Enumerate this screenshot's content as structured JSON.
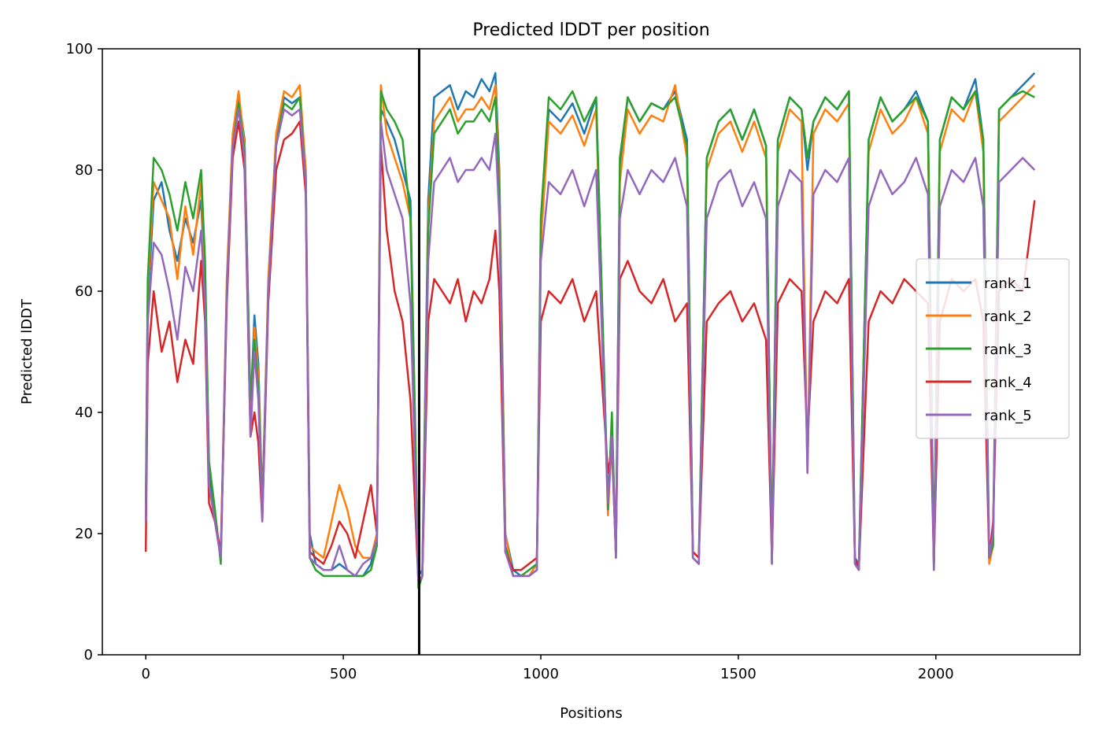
{
  "chart_data": {
    "type": "line",
    "title": "Predicted lDDT per position",
    "xlabel": "Positions",
    "ylabel": "Predicted lDDT",
    "xlim": [
      -110,
      2365
    ],
    "ylim": [
      0,
      100
    ],
    "xticks": [
      0,
      500,
      1000,
      1500,
      2000
    ],
    "yticks": [
      0,
      20,
      40,
      60,
      80,
      100
    ],
    "grid": false,
    "legend_position": "center-right",
    "chain_break_x": 692,
    "series": [
      {
        "name": "rank_1",
        "color": "#1f77b4",
        "x": [
          0,
          5,
          20,
          40,
          60,
          80,
          100,
          120,
          140,
          150,
          160,
          175,
          190,
          205,
          220,
          235,
          250,
          265,
          275,
          285,
          295,
          310,
          330,
          350,
          370,
          390,
          405,
          415,
          430,
          450,
          470,
          490,
          510,
          530,
          550,
          570,
          585,
          595,
          610,
          630,
          650,
          670,
          690,
          700,
          715,
          730,
          750,
          770,
          790,
          810,
          830,
          850,
          870,
          885,
          895,
          910,
          930,
          950,
          970,
          990,
          1000,
          1020,
          1050,
          1080,
          1110,
          1140,
          1170,
          1180,
          1190,
          1200,
          1220,
          1250,
          1280,
          1310,
          1340,
          1370,
          1385,
          1400,
          1420,
          1450,
          1480,
          1510,
          1540,
          1570,
          1585,
          1600,
          1630,
          1660,
          1675,
          1690,
          1720,
          1750,
          1780,
          1795,
          1805,
          1830,
          1860,
          1890,
          1920,
          1950,
          1980,
          1995,
          2010,
          2040,
          2070,
          2100,
          2120,
          2135,
          2145,
          2160,
          2190,
          2220,
          2250
        ],
        "y": [
          22,
          58,
          75,
          78,
          70,
          65,
          72,
          68,
          75,
          60,
          30,
          22,
          16,
          60,
          85,
          92,
          85,
          40,
          56,
          48,
          25,
          60,
          85,
          92,
          91,
          92,
          80,
          20,
          15,
          14,
          14,
          15,
          14,
          13,
          13,
          15,
          20,
          90,
          88,
          85,
          80,
          75,
          13,
          14,
          75,
          92,
          93,
          94,
          90,
          93,
          92,
          95,
          93,
          96,
          80,
          20,
          14,
          13,
          13,
          14,
          70,
          90,
          88,
          91,
          86,
          92,
          25,
          38,
          17,
          80,
          92,
          88,
          91,
          90,
          93,
          85,
          17,
          16,
          82,
          88,
          90,
          85,
          90,
          84,
          16,
          85,
          92,
          90,
          80,
          88,
          92,
          90,
          93,
          16,
          15,
          85,
          92,
          88,
          90,
          93,
          88,
          15,
          85,
          92,
          90,
          95,
          85,
          16,
          20,
          90,
          92,
          94,
          96
        ]
      },
      {
        "name": "rank_2",
        "color": "#ff7f0e",
        "x": [
          0,
          5,
          20,
          40,
          60,
          80,
          100,
          120,
          140,
          150,
          160,
          175,
          190,
          205,
          220,
          235,
          250,
          265,
          275,
          285,
          295,
          310,
          330,
          350,
          370,
          390,
          405,
          415,
          430,
          450,
          470,
          490,
          510,
          530,
          550,
          570,
          585,
          595,
          610,
          630,
          650,
          670,
          690,
          700,
          715,
          730,
          750,
          770,
          790,
          810,
          830,
          850,
          870,
          885,
          895,
          910,
          930,
          950,
          970,
          990,
          1000,
          1020,
          1050,
          1080,
          1110,
          1140,
          1170,
          1180,
          1190,
          1200,
          1220,
          1250,
          1280,
          1310,
          1340,
          1370,
          1385,
          1400,
          1420,
          1450,
          1480,
          1510,
          1540,
          1570,
          1585,
          1600,
          1630,
          1660,
          1675,
          1690,
          1720,
          1750,
          1780,
          1795,
          1805,
          1830,
          1860,
          1890,
          1920,
          1950,
          1980,
          1995,
          2010,
          2040,
          2070,
          2100,
          2120,
          2135,
          2145,
          2160,
          2190,
          2220,
          2250
        ],
        "y": [
          22,
          60,
          78,
          75,
          72,
          62,
          74,
          66,
          78,
          62,
          28,
          22,
          17,
          62,
          86,
          93,
          84,
          38,
          54,
          46,
          24,
          62,
          86,
          93,
          92,
          94,
          80,
          18,
          17,
          16,
          22,
          28,
          24,
          18,
          16,
          16,
          20,
          94,
          86,
          82,
          78,
          72,
          12,
          13,
          72,
          88,
          90,
          92,
          88,
          90,
          90,
          92,
          90,
          94,
          78,
          20,
          13,
          13,
          13,
          15,
          68,
          88,
          86,
          89,
          84,
          90,
          23,
          36,
          16,
          78,
          90,
          86,
          89,
          88,
          94,
          82,
          16,
          15,
          80,
          86,
          88,
          83,
          88,
          82,
          15,
          83,
          90,
          88,
          30,
          86,
          90,
          88,
          91,
          15,
          14,
          83,
          90,
          86,
          88,
          92,
          86,
          14,
          83,
          90,
          88,
          93,
          83,
          15,
          18,
          88,
          90,
          92,
          94
        ]
      },
      {
        "name": "rank_3",
        "color": "#2ca02c",
        "x": [
          0,
          5,
          20,
          40,
          60,
          80,
          100,
          120,
          140,
          150,
          160,
          175,
          190,
          205,
          220,
          235,
          250,
          265,
          275,
          285,
          295,
          310,
          330,
          350,
          370,
          390,
          405,
          415,
          430,
          450,
          470,
          490,
          510,
          530,
          550,
          570,
          585,
          595,
          610,
          630,
          650,
          670,
          690,
          700,
          715,
          730,
          750,
          770,
          790,
          810,
          830,
          850,
          870,
          885,
          895,
          910,
          930,
          950,
          970,
          990,
          1000,
          1020,
          1050,
          1080,
          1110,
          1140,
          1170,
          1180,
          1190,
          1200,
          1220,
          1250,
          1280,
          1310,
          1340,
          1370,
          1385,
          1400,
          1420,
          1450,
          1480,
          1510,
          1540,
          1570,
          1585,
          1600,
          1630,
          1660,
          1675,
          1690,
          1720,
          1750,
          1780,
          1795,
          1805,
          1830,
          1860,
          1890,
          1920,
          1950,
          1980,
          1995,
          2010,
          2040,
          2070,
          2100,
          2120,
          2135,
          2145,
          2160,
          2190,
          2220,
          2250
        ],
        "y": [
          25,
          62,
          82,
          80,
          76,
          70,
          78,
          72,
          80,
          65,
          32,
          24,
          15,
          60,
          84,
          91,
          83,
          42,
          52,
          44,
          23,
          60,
          84,
          91,
          90,
          92,
          78,
          16,
          14,
          13,
          13,
          13,
          13,
          13,
          13,
          14,
          18,
          93,
          90,
          88,
          85,
          72,
          11,
          13,
          70,
          86,
          88,
          90,
          86,
          88,
          88,
          90,
          88,
          92,
          76,
          18,
          13,
          13,
          14,
          15,
          72,
          92,
          90,
          93,
          88,
          92,
          24,
          40,
          16,
          82,
          92,
          88,
          91,
          90,
          92,
          84,
          16,
          15,
          82,
          88,
          90,
          85,
          90,
          84,
          15,
          85,
          92,
          90,
          82,
          88,
          92,
          90,
          93,
          15,
          14,
          85,
          92,
          88,
          90,
          92,
          88,
          14,
          85,
          92,
          90,
          93,
          85,
          16,
          18,
          90,
          92,
          93,
          92
        ]
      },
      {
        "name": "rank_4",
        "color": "#d62728",
        "x": [
          0,
          5,
          20,
          40,
          60,
          80,
          100,
          120,
          140,
          150,
          160,
          175,
          190,
          205,
          220,
          235,
          250,
          265,
          275,
          285,
          295,
          310,
          330,
          350,
          370,
          390,
          405,
          415,
          430,
          450,
          470,
          490,
          510,
          530,
          550,
          570,
          585,
          595,
          610,
          630,
          650,
          670,
          690,
          700,
          715,
          730,
          750,
          770,
          790,
          810,
          830,
          850,
          870,
          885,
          895,
          910,
          930,
          950,
          970,
          990,
          1000,
          1020,
          1050,
          1080,
          1110,
          1140,
          1170,
          1180,
          1190,
          1200,
          1220,
          1250,
          1280,
          1310,
          1340,
          1370,
          1385,
          1400,
          1420,
          1450,
          1480,
          1510,
          1540,
          1570,
          1585,
          1600,
          1630,
          1660,
          1675,
          1690,
          1720,
          1750,
          1780,
          1795,
          1805,
          1830,
          1860,
          1890,
          1920,
          1950,
          1980,
          1995,
          2010,
          2040,
          2070,
          2100,
          2120,
          2135,
          2145,
          2160,
          2190,
          2220,
          2250
        ],
        "y": [
          17,
          48,
          60,
          50,
          55,
          45,
          52,
          48,
          65,
          55,
          25,
          22,
          17,
          58,
          82,
          88,
          80,
          36,
          40,
          35,
          22,
          58,
          80,
          85,
          86,
          88,
          76,
          17,
          16,
          15,
          18,
          22,
          20,
          16,
          22,
          28,
          20,
          84,
          70,
          60,
          55,
          42,
          12,
          13,
          55,
          62,
          60,
          58,
          62,
          55,
          60,
          58,
          62,
          70,
          60,
          17,
          14,
          14,
          15,
          16,
          55,
          60,
          58,
          62,
          55,
          60,
          30,
          34,
          17,
          62,
          65,
          60,
          58,
          62,
          55,
          58,
          17,
          16,
          55,
          58,
          60,
          55,
          58,
          52,
          16,
          58,
          62,
          60,
          35,
          55,
          60,
          58,
          62,
          16,
          14,
          55,
          60,
          58,
          62,
          60,
          58,
          15,
          55,
          62,
          60,
          62,
          55,
          16,
          22,
          60,
          62,
          60,
          75
        ]
      },
      {
        "name": "rank_5",
        "color": "#9467bd",
        "x": [
          0,
          5,
          20,
          40,
          60,
          80,
          100,
          120,
          140,
          150,
          160,
          175,
          190,
          205,
          220,
          235,
          250,
          265,
          275,
          285,
          295,
          310,
          330,
          350,
          370,
          390,
          405,
          415,
          430,
          450,
          470,
          490,
          510,
          530,
          550,
          570,
          585,
          595,
          610,
          630,
          650,
          670,
          690,
          700,
          715,
          730,
          750,
          770,
          790,
          810,
          830,
          850,
          870,
          885,
          895,
          910,
          930,
          950,
          970,
          990,
          1000,
          1020,
          1050,
          1080,
          1110,
          1140,
          1170,
          1180,
          1190,
          1200,
          1220,
          1250,
          1280,
          1310,
          1340,
          1370,
          1385,
          1400,
          1420,
          1450,
          1480,
          1510,
          1540,
          1570,
          1585,
          1600,
          1630,
          1660,
          1675,
          1690,
          1720,
          1750,
          1780,
          1795,
          1805,
          1830,
          1860,
          1890,
          1920,
          1950,
          1980,
          1995,
          2010,
          2040,
          2070,
          2100,
          2120,
          2135,
          2145,
          2160,
          2190,
          2220,
          2250
        ],
        "y": [
          22,
          55,
          68,
          66,
          60,
          52,
          64,
          60,
          70,
          58,
          28,
          22,
          16,
          60,
          84,
          90,
          82,
          36,
          50,
          42,
          22,
          60,
          84,
          90,
          89,
          90,
          78,
          16,
          15,
          14,
          14,
          18,
          14,
          13,
          15,
          16,
          19,
          88,
          80,
          76,
          72,
          58,
          12,
          13,
          65,
          78,
          80,
          82,
          78,
          80,
          80,
          82,
          80,
          86,
          72,
          17,
          13,
          13,
          13,
          14,
          65,
          78,
          76,
          80,
          74,
          80,
          25,
          36,
          16,
          72,
          80,
          76,
          80,
          78,
          82,
          74,
          16,
          15,
          72,
          78,
          80,
          74,
          78,
          72,
          15,
          74,
          80,
          78,
          30,
          76,
          80,
          78,
          82,
          15,
          14,
          74,
          80,
          76,
          78,
          82,
          76,
          14,
          74,
          80,
          78,
          82,
          74,
          16,
          20,
          78,
          80,
          82,
          80
        ]
      }
    ]
  }
}
